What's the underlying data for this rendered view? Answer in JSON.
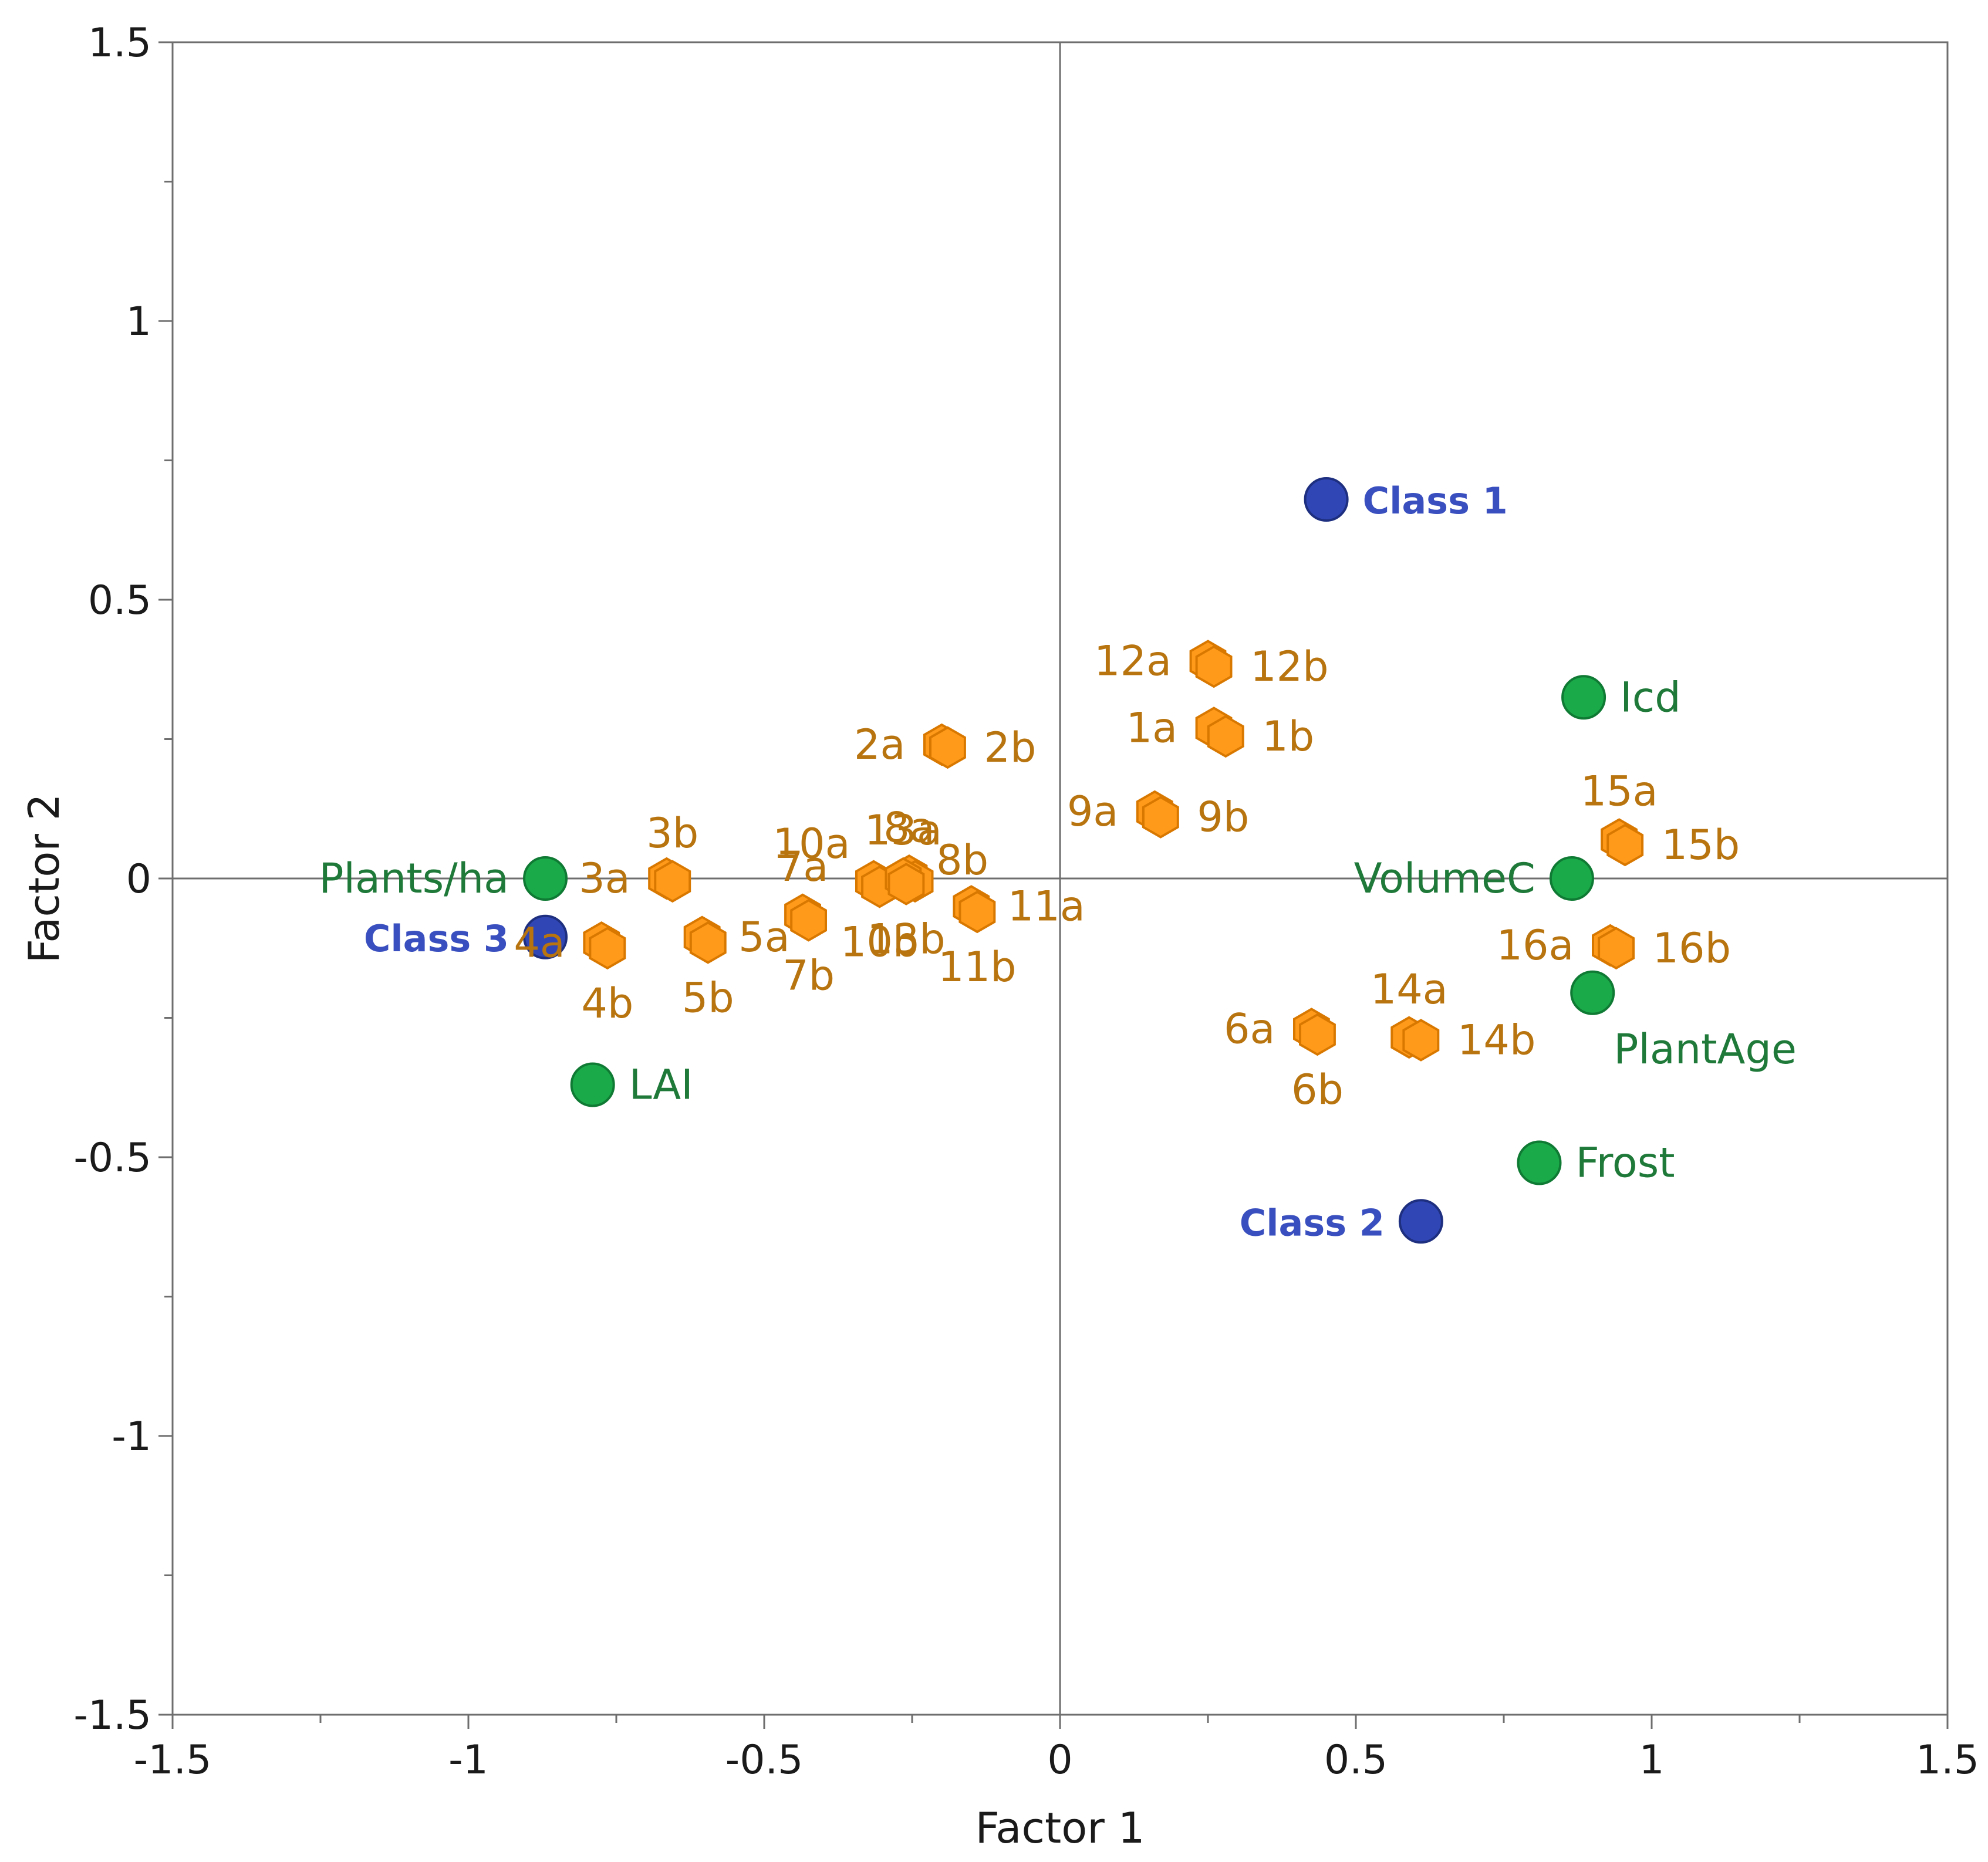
{
  "chart_data": {
    "type": "scatter",
    "xlabel": "Factor 1",
    "ylabel": "Factor 2",
    "xlim": [
      -1.5,
      1.5
    ],
    "ylim": [
      -1.5,
      1.5
    ],
    "x_ticks": [
      "-1.5",
      "-1",
      "-0.5",
      "0",
      "0.5",
      "1",
      "1.5"
    ],
    "y_ticks": [
      "1.5",
      "1",
      "0.5",
      "0",
      "-0.5",
      "-1",
      "-1.5"
    ],
    "x_tick_values": [
      -1.5,
      -1,
      -0.5,
      0,
      0.5,
      1,
      1.5
    ],
    "y_tick_values": [
      1.5,
      1,
      0.5,
      0,
      -0.5,
      -1,
      -1.5
    ],
    "minor_ticks": true,
    "grid": false,
    "zero_lines": true,
    "colors": {
      "variable": "#1aaa4a",
      "variable_text": "#1f7a3a",
      "class": "#2f46b4",
      "class_text": "#3a4fbf",
      "sample": "#ff9a1a",
      "sample_stroke": "#d97800",
      "sample_text": "#b8740f",
      "axis": "#6e6e6e"
    },
    "series": [
      {
        "marker": "circle",
        "color": "#1aaa4a",
        "points": [
          {
            "label": "Plants/ha",
            "x": -0.87,
            "y": 0.0,
            "anchor": "left"
          },
          {
            "label": "LAI",
            "x": -0.79,
            "y": -0.37,
            "anchor": "right"
          },
          {
            "label": "Icd",
            "x": 0.885,
            "y": 0.325,
            "anchor": "right"
          },
          {
            "label": "VolumeC",
            "x": 0.865,
            "y": 0.0,
            "anchor": "left"
          },
          {
            "label": "PlantAge",
            "x": 0.9,
            "y": -0.205,
            "anchor": "below-right"
          },
          {
            "label": "Frost",
            "x": 0.81,
            "y": -0.51,
            "anchor": "right"
          }
        ]
      },
      {
        "marker": "circle",
        "color": "#2f46b4",
        "points": [
          {
            "label": "Class 1",
            "x": 0.45,
            "y": 0.68,
            "anchor": "right"
          },
          {
            "label": "Class 2",
            "x": 0.61,
            "y": -0.615,
            "anchor": "left"
          },
          {
            "label": "Class 3",
            "x": -0.87,
            "y": -0.105,
            "anchor": "left"
          }
        ]
      },
      {
        "marker": "hexagon",
        "color": "#ff9a1a",
        "points": [
          {
            "label": "1a",
            "x": 0.26,
            "y": 0.27,
            "anchor": "left"
          },
          {
            "label": "1b",
            "x": 0.28,
            "y": 0.255,
            "anchor": "right"
          },
          {
            "label": "2a",
            "x": -0.2,
            "y": 0.24,
            "anchor": "left"
          },
          {
            "label": "2b",
            "x": -0.19,
            "y": 0.235,
            "anchor": "right"
          },
          {
            "label": "3a",
            "x": -0.665,
            "y": 0.0,
            "anchor": "left"
          },
          {
            "label": "3b",
            "x": -0.655,
            "y": -0.005,
            "anchor": "above"
          },
          {
            "label": "4a",
            "x": -0.775,
            "y": -0.115,
            "anchor": "left"
          },
          {
            "label": "4b",
            "x": -0.765,
            "y": -0.125,
            "anchor": "below"
          },
          {
            "label": "5a",
            "x": -0.605,
            "y": -0.105,
            "anchor": "right"
          },
          {
            "label": "5b",
            "x": -0.595,
            "y": -0.115,
            "anchor": "below"
          },
          {
            "label": "6a",
            "x": 0.425,
            "y": -0.27,
            "anchor": "left"
          },
          {
            "label": "6b",
            "x": 0.435,
            "y": -0.28,
            "anchor": "below"
          },
          {
            "label": "7a",
            "x": -0.435,
            "y": -0.065,
            "anchor": "above"
          },
          {
            "label": "7b",
            "x": -0.425,
            "y": -0.075,
            "anchor": "below"
          },
          {
            "label": "8a",
            "x": -0.255,
            "y": 0.005,
            "anchor": "above"
          },
          {
            "label": "8b",
            "x": -0.245,
            "y": -0.005,
            "anchor": "above-right"
          },
          {
            "label": "9a",
            "x": 0.16,
            "y": 0.12,
            "anchor": "left"
          },
          {
            "label": "9b",
            "x": 0.17,
            "y": 0.11,
            "anchor": "right"
          },
          {
            "label": "10a",
            "x": -0.315,
            "y": -0.005,
            "anchor": "above-left"
          },
          {
            "label": "10b",
            "x": -0.305,
            "y": -0.015,
            "anchor": "below"
          },
          {
            "label": "11a",
            "x": -0.15,
            "y": -0.05,
            "anchor": "right"
          },
          {
            "label": "11b",
            "x": -0.14,
            "y": -0.06,
            "anchor": "below"
          },
          {
            "label": "12a",
            "x": 0.25,
            "y": 0.39,
            "anchor": "left"
          },
          {
            "label": "12b",
            "x": 0.26,
            "y": 0.38,
            "anchor": "right"
          },
          {
            "label": "13a",
            "x": -0.265,
            "y": 0.0,
            "anchor": "above"
          },
          {
            "label": "13b",
            "x": -0.26,
            "y": -0.01,
            "anchor": "below"
          },
          {
            "label": "14a",
            "x": 0.59,
            "y": -0.285,
            "anchor": "above"
          },
          {
            "label": "14b",
            "x": 0.61,
            "y": -0.29,
            "anchor": "right"
          },
          {
            "label": "15a",
            "x": 0.945,
            "y": 0.07,
            "anchor": "above"
          },
          {
            "label": "15b",
            "x": 0.955,
            "y": 0.06,
            "anchor": "right"
          },
          {
            "label": "16a",
            "x": 0.93,
            "y": -0.12,
            "anchor": "left"
          },
          {
            "label": "16b",
            "x": 0.94,
            "y": -0.125,
            "anchor": "right"
          }
        ]
      }
    ]
  }
}
